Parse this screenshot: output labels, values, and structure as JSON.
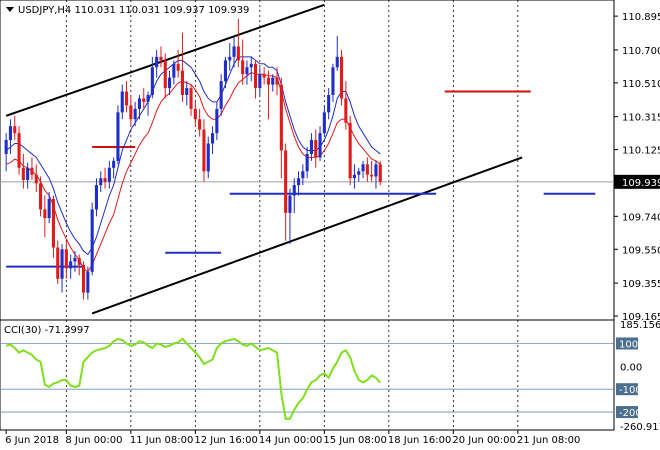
{
  "header": {
    "symbol_line": "USDJPY,H4  110.031 110.031 109.937 109.939"
  },
  "indicator": {
    "label": "CCI(30) -71.3997",
    "scale_max": "185.1565",
    "scale_min": "-260.9171"
  },
  "colors": {
    "background": "#ffffff",
    "bull_candle": "#1f2ec8",
    "bear_candle": "#e01b1b",
    "ma_fast": "#e01b1b",
    "ma_slow": "#1f2ec8",
    "channel": "#000000",
    "pivot_red": "#d01010",
    "pivot_blue": "#1f2ec8",
    "cci_line": "#7fe01a",
    "price_tag_bg": "#000000",
    "price_tag_text": "#ffffff"
  },
  "chart_data": [
    {
      "type": "candlestick",
      "title": "USDJPY,H4",
      "ohlc_header": {
        "open": 110.031,
        "high": 110.031,
        "low": 109.937,
        "close": 109.939
      },
      "current_price": "109.939",
      "y_ticks": [
        "110.895",
        "110.700",
        "110.510",
        "110.315",
        "110.125",
        "109.740",
        "109.550",
        "109.355",
        "109.165"
      ],
      "ylim": [
        109.165,
        110.965
      ],
      "x_labels": [
        "6 Jun 2018",
        "8 Jun 00:00",
        "11 Jun 08:00",
        "12 Jun 16:00",
        "14 Jun 00:00",
        "15 Jun 08:00",
        "18 Jun 16:00",
        "20 Jun 00:00",
        "21 Jun 08:00"
      ],
      "x_label_index": [
        0,
        14,
        29,
        44,
        59,
        74,
        89,
        104,
        119
      ],
      "candles": [
        [
          110.1,
          110.22,
          110.0,
          110.18
        ],
        [
          110.18,
          110.3,
          110.1,
          110.26
        ],
        [
          110.26,
          110.32,
          110.18,
          110.22
        ],
        [
          110.22,
          110.26,
          109.98,
          110.02
        ],
        [
          110.02,
          110.1,
          109.9,
          109.95
        ],
        [
          109.95,
          110.05,
          109.9,
          110.02
        ],
        [
          110.02,
          110.08,
          109.95,
          109.98
        ],
        [
          109.98,
          110.04,
          109.88,
          109.93
        ],
        [
          109.93,
          109.97,
          109.74,
          109.78
        ],
        [
          109.78,
          109.86,
          109.62,
          109.73
        ],
        [
          109.73,
          109.88,
          109.7,
          109.84
        ],
        [
          109.84,
          109.86,
          109.5,
          109.56
        ],
        [
          109.56,
          109.6,
          109.35,
          109.38
        ],
        [
          109.38,
          109.58,
          109.3,
          109.55
        ],
        [
          109.55,
          109.6,
          109.38,
          109.44
        ],
        [
          109.44,
          109.52,
          109.38,
          109.48
        ],
        [
          109.48,
          109.54,
          109.42,
          109.5
        ],
        [
          109.5,
          109.52,
          109.4,
          109.46
        ],
        [
          109.46,
          109.48,
          109.26,
          109.3
        ],
        [
          109.3,
          109.45,
          109.26,
          109.42
        ],
        [
          109.42,
          109.82,
          109.4,
          109.78
        ],
        [
          109.78,
          109.96,
          109.74,
          109.92
        ],
        [
          109.92,
          110.0,
          109.88,
          109.96
        ],
        [
          109.96,
          110.02,
          109.9,
          109.94
        ],
        [
          109.94,
          110.06,
          109.9,
          110.02
        ],
        [
          110.02,
          110.08,
          109.96,
          110.06
        ],
        [
          110.06,
          110.38,
          110.04,
          110.34
        ],
        [
          110.34,
          110.5,
          110.3,
          110.46
        ],
        [
          110.46,
          110.52,
          110.34,
          110.38
        ],
        [
          110.38,
          110.44,
          110.26,
          110.3
        ],
        [
          110.3,
          110.4,
          110.26,
          110.36
        ],
        [
          110.36,
          110.44,
          110.3,
          110.42
        ],
        [
          110.42,
          110.48,
          110.36,
          110.4
        ],
        [
          110.4,
          110.46,
          110.32,
          110.44
        ],
        [
          110.44,
          110.66,
          110.42,
          110.6
        ],
        [
          110.6,
          110.7,
          110.54,
          110.66
        ],
        [
          110.66,
          110.72,
          110.6,
          110.64
        ],
        [
          110.64,
          110.68,
          110.42,
          110.48
        ],
        [
          110.48,
          110.58,
          110.44,
          110.54
        ],
        [
          110.54,
          110.64,
          110.5,
          110.62
        ],
        [
          110.62,
          110.7,
          110.54,
          110.58
        ],
        [
          110.58,
          110.8,
          110.4,
          110.44
        ],
        [
          110.44,
          110.52,
          110.38,
          110.48
        ],
        [
          110.48,
          110.5,
          110.32,
          110.36
        ],
        [
          110.36,
          110.4,
          110.26,
          110.3
        ],
        [
          110.3,
          110.36,
          110.2,
          110.24
        ],
        [
          110.24,
          110.3,
          109.94,
          110.0
        ],
        [
          110.0,
          110.2,
          109.96,
          110.16
        ],
        [
          110.16,
          110.26,
          110.1,
          110.22
        ],
        [
          110.22,
          110.4,
          110.18,
          110.36
        ],
        [
          110.36,
          110.56,
          110.32,
          110.52
        ],
        [
          110.52,
          110.66,
          110.48,
          110.64
        ],
        [
          110.64,
          110.74,
          110.58,
          110.66
        ],
        [
          110.66,
          110.78,
          110.6,
          110.72
        ],
        [
          110.72,
          110.88,
          110.6,
          110.64
        ],
        [
          110.64,
          110.76,
          110.5,
          110.56
        ],
        [
          110.56,
          110.64,
          110.5,
          110.6
        ],
        [
          110.6,
          110.66,
          110.52,
          110.62
        ],
        [
          110.62,
          110.64,
          110.42,
          110.48
        ],
        [
          110.48,
          110.6,
          110.44,
          110.56
        ],
        [
          110.56,
          110.6,
          110.5,
          110.54
        ],
        [
          110.54,
          110.58,
          110.3,
          110.5
        ],
        [
          110.5,
          110.56,
          110.46,
          110.54
        ],
        [
          110.54,
          110.6,
          110.44,
          110.5
        ],
        [
          110.5,
          110.54,
          109.96,
          110.12
        ],
        [
          110.12,
          110.16,
          109.6,
          109.76
        ],
        [
          109.76,
          109.9,
          109.58,
          109.86
        ],
        [
          109.86,
          109.96,
          109.76,
          109.92
        ],
        [
          109.92,
          110.0,
          109.86,
          109.96
        ],
        [
          109.96,
          110.04,
          109.92,
          110.0
        ],
        [
          110.0,
          110.14,
          109.96,
          110.1
        ],
        [
          110.1,
          110.22,
          110.06,
          110.18
        ],
        [
          110.18,
          110.24,
          110.02,
          110.08
        ],
        [
          110.08,
          110.26,
          110.06,
          110.22
        ],
        [
          110.22,
          110.38,
          110.2,
          110.34
        ],
        [
          110.34,
          110.48,
          110.3,
          110.44
        ],
        [
          110.44,
          110.62,
          110.4,
          110.6
        ],
        [
          110.6,
          110.78,
          110.58,
          110.66
        ],
        [
          110.66,
          110.7,
          110.38,
          110.42
        ],
        [
          110.42,
          110.52,
          110.24,
          110.28
        ],
        [
          110.28,
          110.32,
          109.92,
          109.96
        ],
        [
          109.96,
          110.04,
          109.9,
          109.98
        ],
        [
          109.98,
          110.02,
          109.94,
          110.0
        ],
        [
          110.0,
          110.06,
          109.96,
          110.04
        ],
        [
          110.04,
          110.08,
          109.94,
          109.98
        ],
        [
          109.98,
          110.06,
          109.94,
          109.97
        ],
        [
          109.97,
          110.06,
          109.9,
          110.04
        ],
        [
          110.04,
          110.06,
          109.92,
          109.939
        ]
      ],
      "ma_fast": [
        110.04,
        110.05,
        110.07,
        110.06,
        110.03,
        110.02,
        110.0,
        109.98,
        109.94,
        109.89,
        109.86,
        109.8,
        109.72,
        109.66,
        109.61,
        109.56,
        109.52,
        109.49,
        109.44,
        109.42,
        109.46,
        109.52,
        109.58,
        109.64,
        109.7,
        109.75,
        109.84,
        109.93,
        110.0,
        110.05,
        110.1,
        110.15,
        110.19,
        110.22,
        110.28,
        110.35,
        110.4,
        110.43,
        110.45,
        110.48,
        110.51,
        110.52,
        110.51,
        110.5,
        110.47,
        110.43,
        110.36,
        110.32,
        110.3,
        110.3,
        110.33,
        110.38,
        110.42,
        110.47,
        110.51,
        110.53,
        110.55,
        110.57,
        110.56,
        110.56,
        110.56,
        110.55,
        110.55,
        110.54,
        110.46,
        110.36,
        110.28,
        110.2,
        110.14,
        110.1,
        110.08,
        110.08,
        110.08,
        110.09,
        110.12,
        110.16,
        110.22,
        110.28,
        110.3,
        110.3,
        110.25,
        110.2,
        110.16,
        110.13,
        110.1,
        110.07,
        110.06,
        110.04
      ],
      "ma_slow": [
        110.12,
        110.14,
        110.16,
        110.16,
        110.14,
        110.12,
        110.1,
        110.08,
        110.04,
        110.0,
        109.96,
        109.9,
        109.82,
        109.76,
        109.7,
        109.65,
        109.61,
        109.58,
        109.54,
        109.52,
        109.56,
        109.62,
        109.7,
        109.78,
        109.86,
        109.92,
        110.02,
        110.12,
        110.18,
        110.24,
        110.28,
        110.32,
        110.36,
        110.4,
        110.46,
        110.52,
        110.56,
        110.58,
        110.6,
        110.62,
        110.64,
        110.64,
        110.62,
        110.6,
        110.56,
        110.52,
        110.46,
        110.42,
        110.4,
        110.4,
        110.44,
        110.5,
        110.56,
        110.62,
        110.66,
        110.66,
        110.66,
        110.66,
        110.64,
        110.62,
        110.62,
        110.6,
        110.6,
        110.58,
        110.5,
        110.4,
        110.32,
        110.24,
        110.18,
        110.14,
        110.12,
        110.12,
        110.12,
        110.14,
        110.18,
        110.24,
        110.32,
        110.42,
        110.46,
        110.46,
        110.4,
        110.32,
        110.26,
        110.22,
        110.18,
        110.14,
        110.12,
        110.1
      ],
      "channel_upper": {
        "from": [
          0,
          110.32
        ],
        "to": [
          74,
          110.96
        ]
      },
      "channel_lower": {
        "from": [
          20,
          109.18
        ],
        "to": [
          120,
          110.08
        ]
      },
      "pivot_levels": [
        {
          "color": "red",
          "segments": [
            [
              20,
              30,
              110.14
            ],
            [
              102,
              122,
              110.46
            ]
          ]
        },
        {
          "color": "blue",
          "segments": [
            [
              0,
              18,
              109.45
            ],
            [
              37,
              50,
              109.53
            ],
            [
              52,
              64,
              109.87
            ],
            [
              64,
              100,
              109.87
            ],
            [
              125,
              137,
              109.87
            ]
          ]
        }
      ]
    },
    {
      "type": "line",
      "title": "CCI(30) -71.3997",
      "y_ticks": [
        "185.1565",
        "100",
        "0.00",
        "-100",
        "-200",
        "-260.9171"
      ],
      "ylim": [
        -260.9171,
        185.1565
      ],
      "reference_levels": [
        100,
        -100,
        -200
      ],
      "series": [
        {
          "name": "CCI(30)",
          "values": [
            90,
            95,
            80,
            60,
            70,
            60,
            50,
            30,
            20,
            -80,
            -90,
            -75,
            -70,
            -60,
            -60,
            -85,
            -90,
            -85,
            20,
            40,
            60,
            70,
            75,
            80,
            90,
            110,
            120,
            115,
            100,
            90,
            95,
            110,
            105,
            90,
            80,
            100,
            95,
            85,
            90,
            100,
            105,
            120,
            100,
            80,
            60,
            40,
            10,
            20,
            30,
            80,
            100,
            110,
            115,
            120,
            110,
            95,
            90,
            100,
            85,
            70,
            75,
            80,
            70,
            60,
            -120,
            -230,
            -230,
            -190,
            -160,
            -140,
            -100,
            -70,
            -60,
            -40,
            -30,
            -50,
            -10,
            20,
            60,
            70,
            40,
            -20,
            -60,
            -70,
            -60,
            -40,
            -50,
            -71.3997
          ]
        }
      ]
    }
  ]
}
